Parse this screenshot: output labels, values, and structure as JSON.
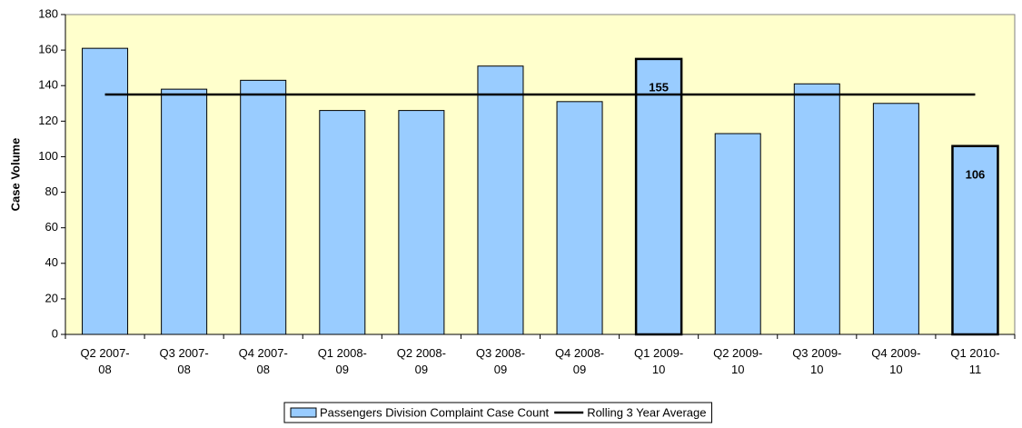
{
  "chart_data": {
    "type": "bar",
    "y_label": "Case Volume",
    "categories": [
      "Q2 2007-08",
      "Q3 2007-08",
      "Q4 2007-08",
      "Q1 2008-09",
      "Q2 2008-09",
      "Q3 2008-09",
      "Q4 2008-09",
      "Q1 2009-10",
      "Q2 2009-10",
      "Q3 2009-10",
      "Q4 2009-10",
      "Q1 2010-11"
    ],
    "series": [
      {
        "name": "Passengers Division Complaint Case Count",
        "color": "#99ccff",
        "type": "bar",
        "values": [
          161,
          138,
          143,
          126,
          126,
          151,
          131,
          155,
          113,
          141,
          130,
          106
        ],
        "emphasized": [
          false,
          false,
          false,
          false,
          false,
          false,
          false,
          true,
          false,
          false,
          false,
          true
        ]
      },
      {
        "name": "Rolling 3 Year Average",
        "color": "#000000",
        "type": "line",
        "values": [
          135,
          135,
          135,
          135,
          135,
          135,
          135,
          135,
          135,
          135,
          135,
          135
        ]
      }
    ],
    "ylim": [
      0,
      180
    ],
    "yticks": [
      0,
      20,
      40,
      60,
      80,
      100,
      120,
      140,
      160,
      180
    ],
    "plot_background": "#ffffcc",
    "legend": "bottom"
  }
}
